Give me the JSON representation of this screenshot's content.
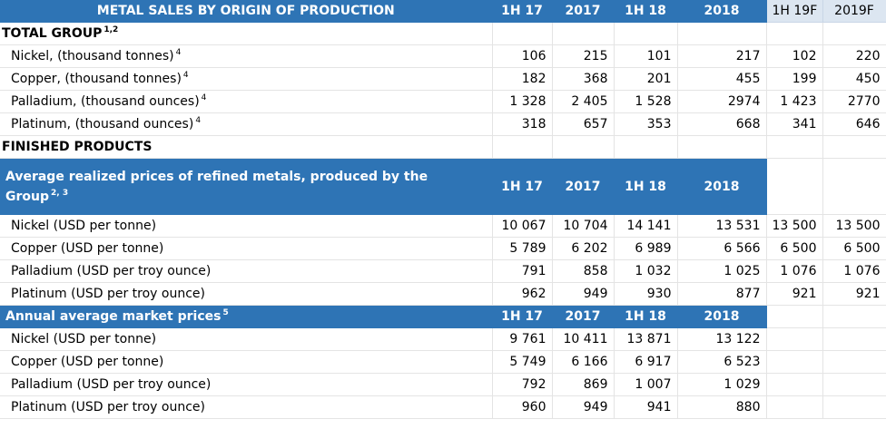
{
  "header": {
    "title": "METAL SALES BY ORIGIN OF PRODUCTION",
    "cols": [
      "1H 17",
      "2017",
      "1H 18",
      "2018"
    ],
    "forecast_cols": [
      "1H 19F",
      "2019F"
    ]
  },
  "total_group": {
    "label": "TOTAL GROUP",
    "sup": "1,2",
    "rows": [
      {
        "label": "Nickel, (thousand tonnes)",
        "sup": "4",
        "values": [
          "106",
          "215",
          "101",
          "217",
          "102",
          "220"
        ]
      },
      {
        "label": "Copper, (thousand tonnes)",
        "sup": "4",
        "values": [
          "182",
          "368",
          "201",
          "455",
          "199",
          "450"
        ]
      },
      {
        "label": "Palladium, (thousand ounces)",
        "sup": "4",
        "values": [
          "1 328",
          "2 405",
          "1 528",
          "2974",
          "1 423",
          "2770"
        ]
      },
      {
        "label": "Platinum, (thousand ounces)",
        "sup": "4",
        "values": [
          "318",
          "657",
          "353",
          "668",
          "341",
          "646"
        ]
      }
    ]
  },
  "finished_products": {
    "label": "FINISHED PRODUCTS"
  },
  "realized": {
    "title": "Average realized prices of refined metals,  produced by the Group",
    "sup": "2, 3",
    "cols": [
      "1H 17",
      "2017",
      "1H 18",
      "2018"
    ],
    "rows": [
      {
        "label": "Nickel  (USD per tonne)",
        "values": [
          "10 067",
          "10 704",
          "14 141",
          "13 531",
          "13 500",
          "13 500"
        ]
      },
      {
        "label": "Copper (USD per tonne)",
        "values": [
          "5 789",
          "6 202",
          "6 989",
          "6 566",
          "6 500",
          "6 500"
        ]
      },
      {
        "label": "Palladium (USD per troy ounce)",
        "values": [
          "791",
          "858",
          "1 032",
          "1 025",
          "1 076",
          "1 076"
        ]
      },
      {
        "label": "Platinum (USD per troy ounce)",
        "values": [
          "962",
          "949",
          "930",
          "877",
          "921",
          "921"
        ]
      }
    ]
  },
  "market": {
    "title": "Annual average market prices",
    "sup": "5",
    "cols": [
      "1H 17",
      "2017",
      "1H 18",
      "2018"
    ],
    "rows": [
      {
        "label": "Nickel  (USD per tonne)",
        "values": [
          "9 761",
          "10 411",
          "13 871",
          "13 122"
        ]
      },
      {
        "label": "Copper (USD per tonne)",
        "values": [
          "5 749",
          "6 166",
          "6 917",
          "6 523"
        ]
      },
      {
        "label": "Palladium (USD per troy ounce)",
        "values": [
          "792",
          "869",
          "1 007",
          "1 029"
        ]
      },
      {
        "label": "Platinum (USD per troy ounce)",
        "values": [
          "960",
          "949",
          "941",
          "880"
        ]
      }
    ]
  }
}
